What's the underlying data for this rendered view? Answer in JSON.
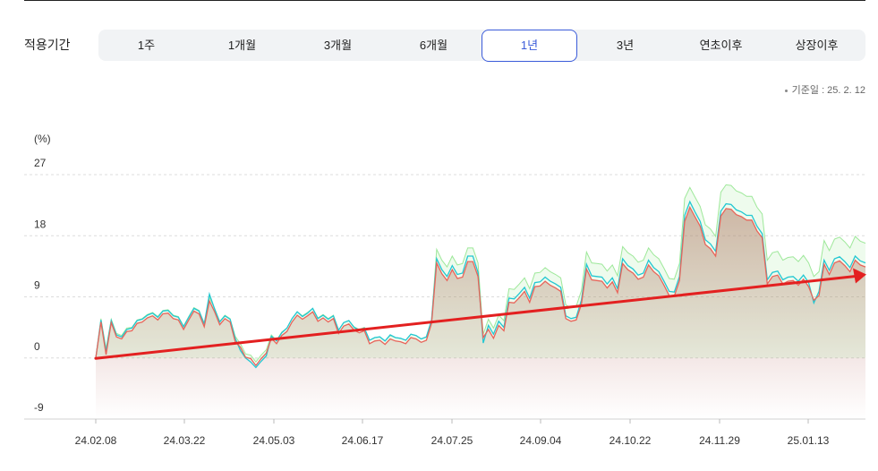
{
  "filter": {
    "label": "적용기간",
    "tabs": [
      "1주",
      "1개월",
      "3개월",
      "6개월",
      "1년",
      "3년",
      "연초이후",
      "상장이후"
    ],
    "selected": "1년"
  },
  "base_date": "기준일 : 25. 2. 12",
  "colors": {
    "accent": "#3a5bd9",
    "series_main": "#e8645a",
    "series_cyan": "#22c7d2",
    "series_green": "#9ee89a",
    "trend_arrow": "#e32020",
    "area_fill": "#b86a62"
  },
  "chart_data": {
    "type": "line",
    "ylabel": "(%)",
    "ylim": [
      -9,
      27
    ],
    "yticks": [
      "27",
      "18",
      "9",
      "0",
      "-9"
    ],
    "xticks": [
      "24.02.08",
      "24.03.22",
      "24.05.03",
      "24.06.17",
      "24.07.25",
      "24.09.04",
      "24.10.22",
      "24.11.29",
      "25.01.13"
    ],
    "series": [
      {
        "key": "main",
        "values": [
          0,
          5.3,
          0.5,
          5.2,
          3.1,
          2.8,
          3.9,
          4.0,
          5.1,
          5.3,
          5.9,
          6.2,
          5.6,
          6.5,
          6.6,
          5.8,
          5.6,
          4.2,
          5.6,
          6.9,
          6.5,
          4.6,
          8.4,
          6.8,
          4.9,
          5.8,
          5.3,
          2.4,
          1.6,
          0.1,
          -0.1,
          -1.1,
          -0.1,
          0.7,
          2.9,
          2.1,
          3.3,
          3.9,
          5.3,
          6.3,
          5.7,
          6.2,
          6.8,
          5.4,
          5.9,
          5.3,
          5.8,
          3.6,
          4.7,
          5.0,
          4.1,
          3.7,
          4.0,
          2.1,
          2.5,
          2.6,
          2.0,
          2.8,
          2.5,
          2.4,
          2.1,
          3.0,
          2.8,
          2.3,
          2.6,
          5.1,
          14.0,
          12.4,
          11.4,
          13.0,
          11.7,
          11.9,
          14.2,
          14.2,
          12.0,
          3.0,
          4.2,
          2.9,
          4.8,
          4.0,
          8.2,
          8.1,
          8.9,
          9.8,
          8.2,
          10.5,
          10.6,
          11.3,
          10.7,
          10.3,
          9.8,
          5.8,
          5.4,
          5.6,
          7.9,
          13.1,
          11.5,
          11.4,
          11.3,
          10.3,
          11.2,
          9.6,
          13.9,
          13.0,
          12.5,
          11.6,
          11.9,
          13.7,
          12.7,
          12.1,
          10.7,
          9.2,
          9.1,
          11.4,
          20.1,
          22.2,
          20.8,
          19.4,
          16.7,
          16.1,
          15.0,
          20.9,
          22.0,
          21.9,
          21.1,
          20.8,
          20.3,
          20.3,
          18.7,
          17.7,
          10.9,
          12.0,
          12.2,
          10.9,
          11.3,
          11.4,
          10.7,
          11.6,
          10.5,
          8.5,
          9.2,
          13.8,
          12.3,
          14.0,
          14.3,
          13.6,
          12.7,
          14.4,
          13.7,
          13.4
        ]
      },
      {
        "key": "cyan",
        "values": [
          0,
          5.6,
          1.0,
          5.5,
          3.4,
          3.1,
          4.2,
          4.4,
          5.5,
          5.7,
          6.3,
          6.6,
          6.0,
          6.9,
          7.0,
          6.2,
          6.0,
          4.6,
          6.0,
          7.3,
          6.9,
          5.0,
          9.4,
          7.2,
          5.3,
          6.2,
          5.7,
          2.9,
          1.1,
          0.0,
          -0.6,
          -1.4,
          -0.5,
          0.3,
          3.2,
          2.5,
          3.7,
          4.4,
          5.8,
          6.8,
          6.1,
          6.6,
          7.3,
          5.8,
          6.3,
          5.7,
          6.2,
          4.1,
          5.2,
          5.5,
          4.5,
          4.1,
          4.4,
          2.6,
          3.0,
          3.1,
          2.5,
          3.4,
          3.0,
          2.9,
          2.6,
          3.5,
          3.3,
          2.8,
          3.1,
          5.6,
          14.6,
          13.0,
          12.0,
          13.6,
          12.3,
          12.5,
          15.0,
          15.0,
          12.6,
          2.2,
          4.8,
          3.5,
          5.4,
          4.5,
          8.8,
          8.7,
          9.5,
          10.4,
          8.8,
          11.1,
          11.2,
          11.9,
          11.3,
          10.9,
          10.4,
          6.2,
          5.8,
          6.0,
          8.5,
          13.8,
          12.1,
          12.0,
          11.9,
          10.9,
          11.8,
          10.2,
          14.6,
          13.6,
          13.1,
          12.2,
          12.5,
          14.4,
          13.3,
          12.7,
          11.3,
          9.8,
          9.7,
          12.0,
          21.0,
          23.0,
          21.5,
          20.1,
          17.4,
          16.8,
          15.7,
          21.6,
          22.7,
          22.6,
          21.8,
          21.5,
          21.0,
          21.0,
          19.4,
          18.3,
          11.5,
          12.6,
          12.8,
          11.5,
          11.9,
          12.0,
          11.3,
          12.2,
          11.1,
          8.1,
          9.8,
          14.4,
          12.9,
          14.6,
          14.9,
          14.2,
          13.3,
          15.0,
          14.3,
          14.0
        ]
      },
      {
        "key": "green",
        "values": [
          0,
          5.8,
          1.4,
          5.7,
          3.6,
          3.3,
          4.4,
          4.5,
          5.6,
          5.8,
          6.4,
          6.7,
          6.1,
          7.0,
          7.1,
          6.3,
          6.1,
          4.7,
          6.1,
          7.4,
          7.0,
          5.1,
          8.9,
          7.3,
          5.4,
          6.3,
          5.8,
          3.2,
          2.1,
          0.6,
          0.4,
          -0.6,
          0.4,
          1.2,
          3.4,
          2.6,
          3.8,
          4.4,
          5.8,
          6.8,
          6.2,
          6.7,
          7.3,
          5.9,
          6.4,
          5.8,
          6.3,
          4.1,
          5.2,
          5.5,
          4.6,
          4.2,
          4.5,
          2.6,
          3.0,
          3.1,
          2.5,
          3.3,
          3.0,
          2.9,
          2.6,
          3.5,
          3.3,
          2.8,
          3.1,
          5.6,
          16.0,
          14.4,
          13.4,
          15.0,
          13.7,
          13.9,
          16.2,
          16.2,
          14.0,
          3.5,
          5.7,
          4.4,
          6.3,
          5.5,
          10.2,
          10.1,
          10.9,
          11.8,
          10.2,
          12.5,
          12.6,
          13.3,
          12.7,
          12.3,
          11.8,
          7.8,
          7.4,
          7.6,
          9.9,
          15.6,
          14.0,
          13.9,
          13.8,
          12.8,
          13.7,
          12.1,
          16.4,
          15.5,
          15.0,
          14.1,
          14.4,
          16.2,
          15.2,
          14.6,
          13.2,
          11.7,
          11.6,
          13.9,
          23.5,
          25.1,
          23.7,
          22.3,
          19.6,
          19.0,
          17.9,
          24.4,
          25.5,
          25.4,
          24.6,
          24.3,
          23.8,
          23.8,
          22.2,
          21.2,
          14.4,
          15.5,
          15.7,
          14.4,
          14.8,
          14.9,
          14.2,
          15.1,
          14.0,
          12.0,
          12.7,
          17.3,
          15.8,
          17.5,
          17.8,
          17.1,
          16.2,
          17.9,
          17.2,
          16.9
        ]
      }
    ]
  }
}
